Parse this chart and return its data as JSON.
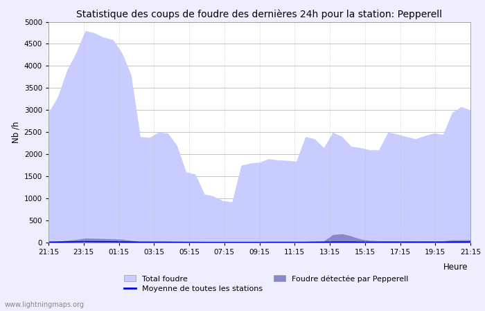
{
  "title": "Statistique des coups de foudre des dernières 24h pour la station: Pepperell",
  "ylabel": "Nb /h",
  "xlabel": "Heure",
  "watermark": "www.lightningmaps.org",
  "ylim": [
    0,
    5000
  ],
  "yticks": [
    0,
    500,
    1000,
    1500,
    2000,
    2500,
    3000,
    3500,
    4000,
    4500,
    5000
  ],
  "xtick_labels": [
    "21:15",
    "23:15",
    "01:15",
    "03:15",
    "05:15",
    "07:15",
    "09:15",
    "11:15",
    "13:15",
    "15:15",
    "17:15",
    "19:15",
    "21:15"
  ],
  "bg_color": "#eeeeff",
  "plot_bg_color": "#ffffff",
  "total_foudre_color": "#c8ccff",
  "foudre_pepperell_color": "#8888cc",
  "moyenne_color": "#0000dd",
  "title_fontsize": 10,
  "total_foudre": [
    2950,
    3300,
    3900,
    4300,
    4800,
    4750,
    4650,
    4600,
    4300,
    3800,
    2400,
    2380,
    2500,
    2480,
    2200,
    1600,
    1550,
    1100,
    1050,
    950,
    920,
    1750,
    1800,
    1820,
    1900,
    1870,
    1860,
    1840,
    2400,
    2350,
    2150,
    2500,
    2400,
    2180,
    2150,
    2100,
    2100,
    2500,
    2460,
    2400,
    2350,
    2420,
    2480,
    2450,
    2950,
    3080,
    3000
  ],
  "foudre_pepperell": [
    20,
    30,
    50,
    70,
    100,
    95,
    90,
    85,
    75,
    50,
    30,
    30,
    30,
    28,
    25,
    20,
    20,
    15,
    12,
    10,
    8,
    10,
    10,
    12,
    15,
    15,
    15,
    15,
    25,
    30,
    35,
    180,
    200,
    150,
    80,
    50,
    40,
    40,
    40,
    40,
    35,
    35,
    38,
    40,
    60,
    60,
    65
  ],
  "moyenne": [
    10,
    12,
    15,
    18,
    22,
    20,
    19,
    18,
    15,
    12,
    8,
    8,
    8,
    8,
    7,
    6,
    6,
    4,
    4,
    4,
    4,
    4,
    4,
    4,
    6,
    6,
    6,
    6,
    6,
    8,
    9,
    12,
    14,
    12,
    9,
    8,
    8,
    9,
    9,
    9,
    9,
    9,
    9,
    9,
    12,
    14,
    15
  ]
}
